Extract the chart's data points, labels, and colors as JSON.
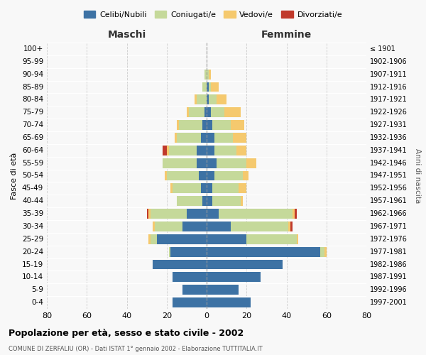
{
  "age_groups": [
    "0-4",
    "5-9",
    "10-14",
    "15-19",
    "20-24",
    "25-29",
    "30-34",
    "35-39",
    "40-44",
    "45-49",
    "50-54",
    "55-59",
    "60-64",
    "65-69",
    "70-74",
    "75-79",
    "80-84",
    "85-89",
    "90-94",
    "95-99",
    "100+"
  ],
  "anni_nascita": [
    "1997-2001",
    "1992-1996",
    "1987-1991",
    "1982-1986",
    "1977-1981",
    "1972-1976",
    "1967-1971",
    "1962-1966",
    "1957-1961",
    "1952-1956",
    "1947-1951",
    "1942-1946",
    "1937-1941",
    "1932-1936",
    "1927-1931",
    "1922-1926",
    "1917-1921",
    "1912-1916",
    "1907-1911",
    "1902-1906",
    "≤ 1901"
  ],
  "maschi": {
    "celibi": [
      17,
      12,
      17,
      27,
      18,
      25,
      12,
      10,
      2,
      3,
      4,
      5,
      5,
      3,
      2,
      1,
      0,
      0,
      0,
      0,
      0
    ],
    "coniugati": [
      0,
      0,
      0,
      0,
      1,
      3,
      14,
      18,
      13,
      14,
      16,
      17,
      14,
      12,
      12,
      8,
      5,
      2,
      1,
      0,
      0
    ],
    "vedovi": [
      0,
      0,
      0,
      0,
      0,
      1,
      1,
      1,
      0,
      1,
      1,
      0,
      1,
      1,
      1,
      1,
      1,
      0,
      0,
      0,
      0
    ],
    "divorziati": [
      0,
      0,
      0,
      0,
      0,
      0,
      0,
      1,
      0,
      0,
      0,
      0,
      2,
      0,
      0,
      0,
      0,
      0,
      0,
      0,
      0
    ]
  },
  "femmine": {
    "nubili": [
      22,
      16,
      27,
      38,
      57,
      20,
      12,
      6,
      3,
      3,
      4,
      5,
      4,
      4,
      3,
      2,
      1,
      1,
      0,
      0,
      0
    ],
    "coniugate": [
      0,
      0,
      0,
      0,
      2,
      25,
      29,
      37,
      14,
      13,
      14,
      15,
      11,
      9,
      9,
      7,
      4,
      1,
      1,
      0,
      0
    ],
    "vedove": [
      0,
      0,
      0,
      0,
      1,
      1,
      1,
      1,
      1,
      4,
      3,
      5,
      5,
      7,
      7,
      8,
      5,
      4,
      1,
      0,
      0
    ],
    "divorziate": [
      0,
      0,
      0,
      0,
      0,
      0,
      1,
      1,
      0,
      0,
      0,
      0,
      0,
      0,
      0,
      0,
      0,
      0,
      0,
      0,
      0
    ]
  },
  "color_celibi": "#3d72a4",
  "color_coniugati": "#c5d99a",
  "color_vedovi": "#f5c96e",
  "color_divorziati": "#c0392b",
  "bg_color": "#f8f8f8",
  "grid_color": "#cccccc",
  "title": "Popolazione per età, sesso e stato civile - 2002",
  "subtitle": "COMUNE DI ZERFALIU (OR) - Dati ISTAT 1° gennaio 2002 - Elaborazione TUTTITALIA.IT",
  "xlabel_left": "Maschi",
  "xlabel_right": "Femmine",
  "ylabel_left": "Fasce di età",
  "ylabel_right": "Anni di nascita",
  "xlim": 80,
  "legend_labels": [
    "Celibi/Nubili",
    "Coniugati/e",
    "Vedovi/e",
    "Divorziati/e"
  ]
}
